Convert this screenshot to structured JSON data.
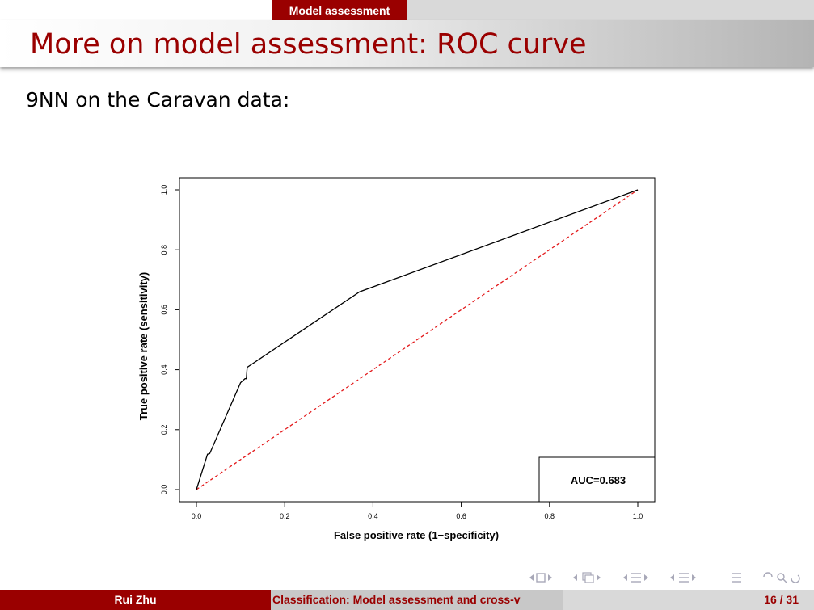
{
  "header": {
    "section": "Model assessment"
  },
  "frame": {
    "title": "More on model assessment: ROC curve",
    "body": "9NN on the Caravan data:"
  },
  "chart_data": {
    "type": "line",
    "xlabel": "False positive rate (1−specificity)",
    "ylabel": "True positive rate (sensitivity)",
    "xlim": [
      0,
      1
    ],
    "ylim": [
      0,
      1
    ],
    "xticks": [
      "0.0",
      "0.2",
      "0.4",
      "0.6",
      "0.8",
      "1.0"
    ],
    "yticks": [
      "0.0",
      "0.2",
      "0.4",
      "0.6",
      "0.8",
      "1.0"
    ],
    "grid": false,
    "series": [
      {
        "x": [
          0,
          0.025,
          0.03,
          0.1,
          0.11,
          0.113,
          0.115,
          0.37,
          1.0
        ],
        "y": [
          0,
          0.118,
          0.12,
          0.357,
          0.37,
          0.37,
          0.408,
          0.66,
          1.0
        ],
        "color": "#000000",
        "style": "solid"
      },
      {
        "x": [
          0,
          1
        ],
        "y": [
          0,
          1
        ],
        "color": "#e31a1c",
        "style": "dashed"
      }
    ],
    "annotation": "AUC=0.683",
    "annotation_position": "bottom-right"
  },
  "nav": {
    "icons": [
      "nav-frame-icon",
      "nav-subsection-icon",
      "nav-section-icon",
      "nav-doc-icon",
      "nav-search-icon"
    ],
    "color": "#a8a8b8"
  },
  "footer": {
    "author": "Rui Zhu",
    "title": "Classification: Model assessment and cross-v",
    "page": "16 / 31"
  },
  "colors": {
    "accent": "#9a0000"
  }
}
